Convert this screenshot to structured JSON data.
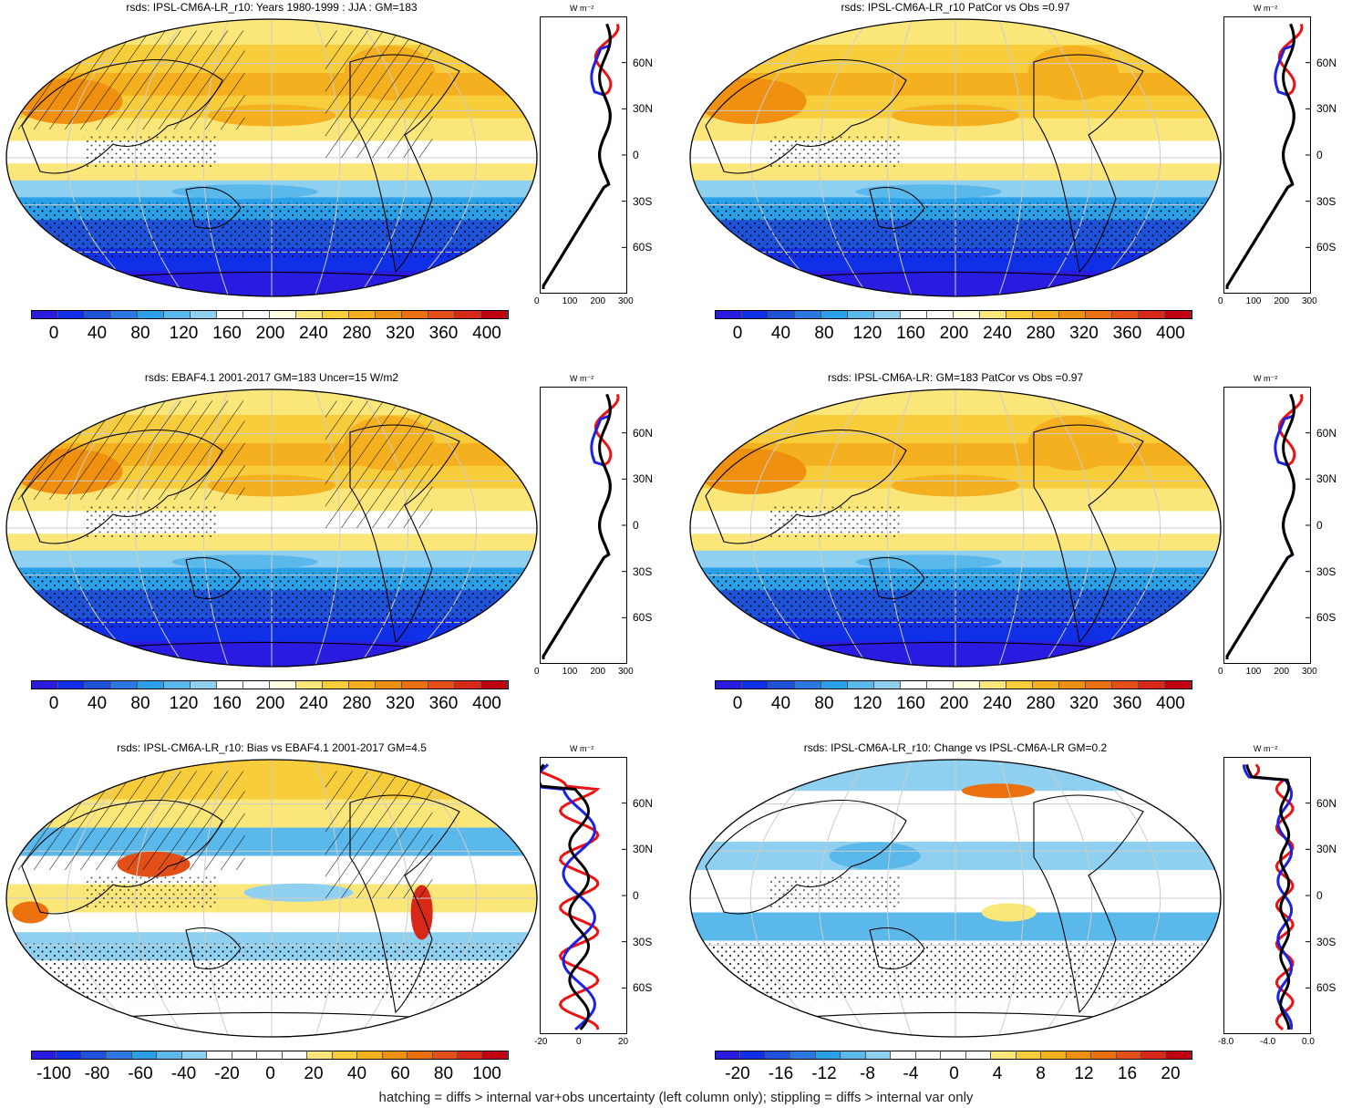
{
  "panels": [
    {
      "title": "rsds: IPSL-CM6A-LR_r10: Years 1980-1999 : JJA : GM=183",
      "colorbar_labels": [
        "0",
        "40",
        "80",
        "120",
        "160",
        "200",
        "240",
        "280",
        "320",
        "360",
        "400"
      ],
      "zonal_x_ticks": [
        "0",
        "100",
        "200",
        "300"
      ],
      "zonal_units": "W m⁻²",
      "type": "abs"
    },
    {
      "title": "rsds: IPSL-CM6A-LR_r10 PatCor vs Obs =0.97",
      "colorbar_labels": [
        "0",
        "40",
        "80",
        "120",
        "160",
        "200",
        "240",
        "280",
        "320",
        "360",
        "400"
      ],
      "zonal_x_ticks": [
        "0",
        "100",
        "200",
        "300"
      ],
      "zonal_units": "W m⁻²",
      "type": "abs"
    },
    {
      "title": "rsds: EBAF4.1 2001-2017 GM=183 Uncer=15 W/m2",
      "colorbar_labels": [
        "0",
        "40",
        "80",
        "120",
        "160",
        "200",
        "240",
        "280",
        "320",
        "360",
        "400"
      ],
      "zonal_x_ticks": [
        "0",
        "100",
        "200",
        "300"
      ],
      "zonal_units": "W m⁻²",
      "type": "abs"
    },
    {
      "title": "rsds: IPSL-CM6A-LR: GM=183 PatCor vs Obs =0.97",
      "colorbar_labels": [
        "0",
        "40",
        "80",
        "120",
        "160",
        "200",
        "240",
        "280",
        "320",
        "360",
        "400"
      ],
      "zonal_x_ticks": [
        "0",
        "100",
        "200",
        "300"
      ],
      "zonal_units": "W m⁻²",
      "type": "abs"
    },
    {
      "title": "rsds: IPSL-CM6A-LR_r10: Bias vs EBAF4.1 2001-2017 GM=4.5",
      "colorbar_labels": [
        "-100",
        "-80",
        "-60",
        "-40",
        "-20",
        "0",
        "20",
        "40",
        "60",
        "80",
        "100"
      ],
      "zonal_x_ticks": [
        "-20",
        "0",
        "20"
      ],
      "zonal_units": "W m⁻²",
      "type": "bias"
    },
    {
      "title": "rsds: IPSL-CM6A-LR_r10: Change vs IPSL-CM6A-LR GM=0.2",
      "colorbar_labels": [
        "-20",
        "-16",
        "-12",
        "-8",
        "-4",
        "0",
        "4",
        "8",
        "12",
        "16",
        "20"
      ],
      "zonal_x_ticks": [
        "-8.0",
        "-4.0",
        "0.0"
      ],
      "zonal_units": "W m⁻²",
      "type": "change"
    }
  ],
  "lat_ticks": [
    "60N",
    "30N",
    "0",
    "30S",
    "60S"
  ],
  "colors": {
    "abs": [
      "#2a1be0",
      "#1030e8",
      "#1e52d8",
      "#2a78e0",
      "#2aa0e8",
      "#5ab8ea",
      "#8fd0f0",
      "#ffffff",
      "#ffffff",
      "#ffffe0",
      "#fbe67a",
      "#f8cd3c",
      "#f5b020",
      "#f09010",
      "#ea7010",
      "#e25018",
      "#d82818",
      "#c00010"
    ],
    "div": [
      "#2a1be0",
      "#1030e8",
      "#1e52d8",
      "#2a78e0",
      "#2aa0e8",
      "#5ab8ea",
      "#8fd0f0",
      "#ffffff",
      "#ffffff",
      "#ffffff",
      "#ffffff",
      "#fbe67a",
      "#f8cd3c",
      "#f5b020",
      "#f09010",
      "#ea7010",
      "#e25018",
      "#d82818",
      "#c00010"
    ],
    "line_red": "#ee1111",
    "line_blue": "#1a22e6",
    "line_black": "#000000"
  },
  "footer": "hatching = diffs > internal var+obs uncertainty (left column only); stippling = diffs > internal var only"
}
